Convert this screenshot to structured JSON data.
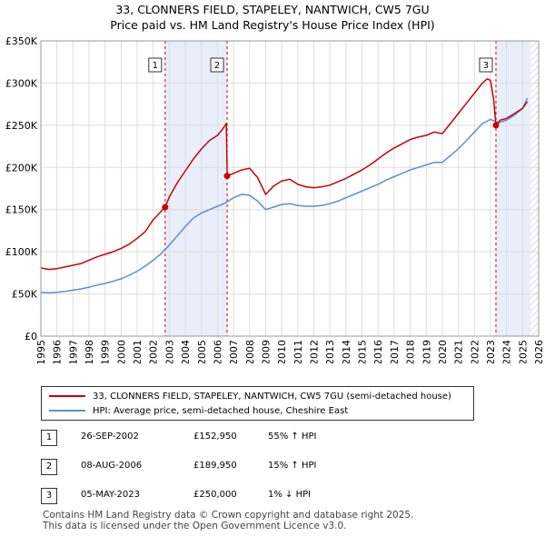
{
  "title_line1": "33, CLONNERS FIELD, STAPELEY, NANTWICH, CW5 7GU",
  "title_line2": "Price paid vs. HM Land Registry's House Price Index (HPI)",
  "chart_data": {
    "type": "line",
    "x_range": [
      1995,
      2026
    ],
    "ylim": [
      0,
      350000
    ],
    "y_ticks": [
      {
        "value": 0,
        "label": "£0"
      },
      {
        "value": 50000,
        "label": "£50K"
      },
      {
        "value": 100000,
        "label": "£100K"
      },
      {
        "value": 150000,
        "label": "£150K"
      },
      {
        "value": 200000,
        "label": "£200K"
      },
      {
        "value": 250000,
        "label": "£250K"
      },
      {
        "value": 300000,
        "label": "£300K"
      },
      {
        "value": 350000,
        "label": "£350K"
      }
    ],
    "x_ticks": [
      "1995",
      "1996",
      "1997",
      "1998",
      "1999",
      "2000",
      "2001",
      "2002",
      "2003",
      "2004",
      "2005",
      "2006",
      "2007",
      "2008",
      "2009",
      "2010",
      "2011",
      "2012",
      "2013",
      "2014",
      "2015",
      "2016",
      "2017",
      "2018",
      "2019",
      "2020",
      "2021",
      "2022",
      "2023",
      "2024",
      "2025",
      "2026"
    ],
    "grid": true,
    "shaded_periods": [
      [
        2002.74,
        2006.6
      ],
      [
        2023.34,
        2025.5
      ]
    ],
    "hatched_future_from": 2025.5,
    "series": [
      {
        "name": "33, CLONNERS FIELD, STAPELEY, NANTWICH, CW5 7GU (semi-detached house)",
        "color": "#cc0000",
        "points": [
          [
            1995.0,
            81000
          ],
          [
            1995.5,
            79000
          ],
          [
            1996.0,
            80000
          ],
          [
            1996.5,
            82000
          ],
          [
            1997.0,
            84000
          ],
          [
            1997.5,
            86000
          ],
          [
            1998.0,
            90000
          ],
          [
            1998.5,
            94000
          ],
          [
            1999.0,
            97000
          ],
          [
            1999.5,
            100000
          ],
          [
            2000.0,
            104000
          ],
          [
            2000.5,
            109000
          ],
          [
            2001.0,
            116000
          ],
          [
            2001.5,
            124000
          ],
          [
            2002.0,
            138000
          ],
          [
            2002.4,
            146000
          ],
          [
            2002.74,
            152950
          ],
          [
            2003.0,
            165000
          ],
          [
            2003.5,
            182000
          ],
          [
            2004.0,
            196000
          ],
          [
            2004.5,
            210000
          ],
          [
            2005.0,
            222000
          ],
          [
            2005.5,
            232000
          ],
          [
            2006.0,
            238000
          ],
          [
            2006.3,
            245000
          ],
          [
            2006.55,
            252000
          ],
          [
            2006.6,
            189950
          ],
          [
            2007.0,
            193000
          ],
          [
            2007.5,
            197000
          ],
          [
            2008.0,
            199000
          ],
          [
            2008.5,
            188000
          ],
          [
            2009.0,
            168000
          ],
          [
            2009.5,
            178000
          ],
          [
            2010.0,
            184000
          ],
          [
            2010.5,
            186000
          ],
          [
            2011.0,
            180000
          ],
          [
            2011.5,
            177000
          ],
          [
            2012.0,
            176000
          ],
          [
            2012.5,
            177000
          ],
          [
            2013.0,
            179000
          ],
          [
            2013.5,
            183000
          ],
          [
            2014.0,
            187000
          ],
          [
            2014.5,
            192000
          ],
          [
            2015.0,
            197000
          ],
          [
            2015.5,
            203000
          ],
          [
            2016.0,
            210000
          ],
          [
            2016.5,
            217000
          ],
          [
            2017.0,
            223000
          ],
          [
            2017.5,
            228000
          ],
          [
            2018.0,
            233000
          ],
          [
            2018.5,
            236000
          ],
          [
            2019.0,
            238000
          ],
          [
            2019.5,
            242000
          ],
          [
            2020.0,
            240000
          ],
          [
            2020.5,
            252000
          ],
          [
            2021.0,
            264000
          ],
          [
            2021.5,
            276000
          ],
          [
            2022.0,
            288000
          ],
          [
            2022.5,
            300000
          ],
          [
            2022.8,
            305000
          ],
          [
            2023.0,
            303000
          ],
          [
            2023.2,
            280000
          ],
          [
            2023.34,
            250000
          ],
          [
            2023.6,
            256000
          ],
          [
            2024.0,
            258000
          ],
          [
            2024.5,
            264000
          ],
          [
            2025.0,
            270000
          ],
          [
            2025.3,
            278000
          ]
        ],
        "markers": [
          {
            "x": 2002.74,
            "y": 152950,
            "label": "1"
          },
          {
            "x": 2006.6,
            "y": 189950,
            "label": "2"
          },
          {
            "x": 2023.34,
            "y": 250000,
            "label": "3"
          }
        ]
      },
      {
        "name": "HPI: Average price, semi-detached house, Cheshire East",
        "color": "#5b8fd4",
        "points": [
          [
            1995.0,
            52000
          ],
          [
            1995.5,
            51500
          ],
          [
            1996.0,
            52000
          ],
          [
            1996.5,
            53000
          ],
          [
            1997.0,
            54500
          ],
          [
            1997.5,
            56000
          ],
          [
            1998.0,
            58000
          ],
          [
            1998.5,
            60500
          ],
          [
            1999.0,
            62500
          ],
          [
            1999.5,
            65000
          ],
          [
            2000.0,
            68000
          ],
          [
            2000.5,
            72000
          ],
          [
            2001.0,
            77000
          ],
          [
            2001.5,
            83000
          ],
          [
            2002.0,
            90000
          ],
          [
            2002.5,
            98000
          ],
          [
            2003.0,
            108000
          ],
          [
            2003.5,
            119000
          ],
          [
            2004.0,
            130000
          ],
          [
            2004.5,
            140000
          ],
          [
            2005.0,
            146000
          ],
          [
            2005.5,
            150000
          ],
          [
            2006.0,
            154000
          ],
          [
            2006.5,
            158000
          ],
          [
            2007.0,
            164000
          ],
          [
            2007.5,
            168000
          ],
          [
            2008.0,
            167000
          ],
          [
            2008.5,
            160000
          ],
          [
            2009.0,
            150000
          ],
          [
            2009.5,
            153000
          ],
          [
            2010.0,
            156000
          ],
          [
            2010.5,
            157000
          ],
          [
            2011.0,
            155000
          ],
          [
            2011.5,
            154000
          ],
          [
            2012.0,
            154000
          ],
          [
            2012.5,
            155000
          ],
          [
            2013.0,
            157000
          ],
          [
            2013.5,
            160000
          ],
          [
            2014.0,
            164000
          ],
          [
            2014.5,
            168000
          ],
          [
            2015.0,
            172000
          ],
          [
            2015.5,
            176000
          ],
          [
            2016.0,
            180000
          ],
          [
            2016.5,
            185000
          ],
          [
            2017.0,
            189000
          ],
          [
            2017.5,
            193000
          ],
          [
            2018.0,
            197000
          ],
          [
            2018.5,
            200000
          ],
          [
            2019.0,
            203000
          ],
          [
            2019.5,
            206000
          ],
          [
            2020.0,
            206000
          ],
          [
            2020.5,
            214000
          ],
          [
            2021.0,
            222000
          ],
          [
            2021.5,
            232000
          ],
          [
            2022.0,
            242000
          ],
          [
            2022.5,
            252000
          ],
          [
            2023.0,
            257000
          ],
          [
            2023.5,
            253000
          ],
          [
            2024.0,
            256000
          ],
          [
            2024.5,
            262000
          ],
          [
            2025.0,
            270000
          ],
          [
            2025.3,
            282000
          ]
        ]
      }
    ]
  },
  "legend": {
    "items": [
      {
        "label": "33, CLONNERS FIELD, STAPELEY, NANTWICH, CW5 7GU (semi-detached house)",
        "color": "#cc0000"
      },
      {
        "label": "HPI: Average price, semi-detached house, Cheshire East",
        "color": "#5b8fd4"
      }
    ]
  },
  "transactions": [
    {
      "num": "1",
      "date": "26-SEP-2002",
      "price": "£152,950",
      "hpi": "55% ↑ HPI"
    },
    {
      "num": "2",
      "date": "08-AUG-2006",
      "price": "£189,950",
      "hpi": "15% ↑ HPI"
    },
    {
      "num": "3",
      "date": "05-MAY-2023",
      "price": "£250,000",
      "hpi": "1% ↓ HPI"
    }
  ],
  "footer": {
    "line1": "Contains HM Land Registry data © Crown copyright and database right 2025.",
    "line2": "This data is licensed under the Open Government Licence v3.0."
  }
}
